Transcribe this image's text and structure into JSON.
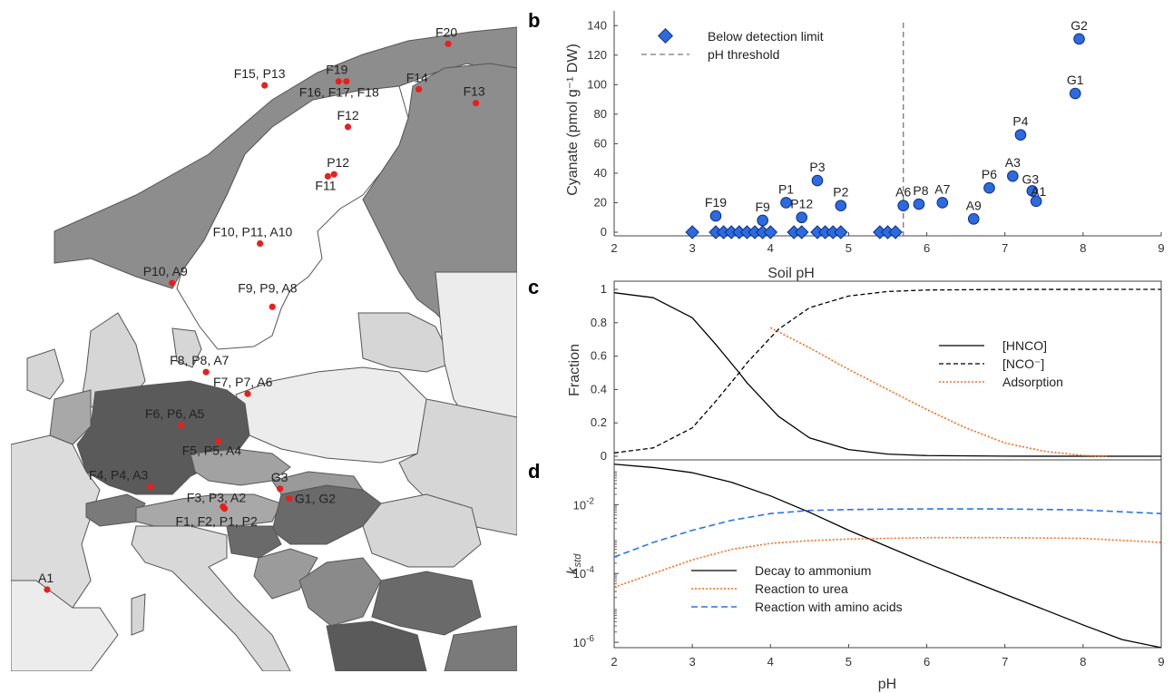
{
  "panel_labels": {
    "a": "a",
    "b": "b",
    "c": "c",
    "d": "d"
  },
  "colors": {
    "site_dot": "#e8201c",
    "point_fill": "#2d6ae0",
    "point_stroke": "#0b2f80",
    "urea": "#ff6a1a",
    "amino": "#2a74e8",
    "threshold": "#777777",
    "sea": "#ffffff",
    "land_dark": "#6a6a6a",
    "land_mid": "#9b9b9b",
    "land_light": "#d6d6d6",
    "land_pale": "#ececec"
  },
  "map": {
    "sites": [
      {
        "label": "F20",
        "lon": 25.5,
        "lat": 70.1
      },
      {
        "label": "F15, P13",
        "lon": 13.6,
        "lat": 68.0
      },
      {
        "label": "F19",
        "lon": 18.4,
        "lat": 68.2
      },
      {
        "label": "F16, F17, F18",
        "lon": 18.9,
        "lat": 68.2
      },
      {
        "label": "F14",
        "lon": 23.6,
        "lat": 67.8
      },
      {
        "label": "F13",
        "lon": 27.3,
        "lat": 67.1
      },
      {
        "label": "F12",
        "lon": 19.0,
        "lat": 65.9
      },
      {
        "label": "P12",
        "lon": 18.1,
        "lat": 63.5
      },
      {
        "label": "F11",
        "lon": 17.7,
        "lat": 63.4
      },
      {
        "label": "F10, P11, A10",
        "lon": 13.3,
        "lat": 60.0
      },
      {
        "label": "P10, A9",
        "lon": 7.6,
        "lat": 58.0
      },
      {
        "label": "F9, P9, A8",
        "lon": 14.1,
        "lat": 56.8
      },
      {
        "label": "F8, P8, A7",
        "lon": 9.8,
        "lat": 53.5
      },
      {
        "label": "F7, P7, A6",
        "lon": 12.5,
        "lat": 52.4
      },
      {
        "label": "F6, P6, A5",
        "lon": 8.2,
        "lat": 50.8
      },
      {
        "label": "F5, P5, A4",
        "lon": 10.6,
        "lat": 50.0
      },
      {
        "label": "F4, P4, A3",
        "lon": 6.2,
        "lat": 47.7
      },
      {
        "label": "F3, P3, A2",
        "lon": 10.9,
        "lat": 46.7
      },
      {
        "label": "F1, F2, P1, P2",
        "lon": 11.0,
        "lat": 46.6
      },
      {
        "label": "G3",
        "lon": 14.6,
        "lat": 47.6
      },
      {
        "label": "G1, G2",
        "lon": 15.2,
        "lat": 47.1
      },
      {
        "label": "A1",
        "lon": -0.5,
        "lat": 42.5
      }
    ]
  },
  "chart_data": [
    {
      "panel": "b",
      "type": "scatter",
      "xlabel": "Soil pH",
      "ylabel": "Cyanate (pmol g⁻¹ DW)",
      "xlim": [
        2,
        9
      ],
      "ylim": [
        0,
        150
      ],
      "xticks": [
        2,
        3,
        4,
        5,
        6,
        7,
        8,
        9
      ],
      "yticks": [
        0,
        20,
        40,
        60,
        80,
        100,
        120,
        140
      ],
      "threshold_x": 5.7,
      "legend": [
        "Below detection limit",
        "pH threshold"
      ],
      "points": [
        {
          "label": "G2",
          "x": 7.95,
          "y": 131
        },
        {
          "label": "G1",
          "x": 7.9,
          "y": 94
        },
        {
          "label": "P4",
          "x": 7.2,
          "y": 66
        },
        {
          "label": "A3",
          "x": 7.1,
          "y": 38
        },
        {
          "label": "P6",
          "x": 6.8,
          "y": 30
        },
        {
          "label": "G3",
          "x": 7.35,
          "y": 28
        },
        {
          "label": "A1",
          "x": 7.4,
          "y": 21
        },
        {
          "label": "A9",
          "x": 6.6,
          "y": 9
        },
        {
          "label": "A7",
          "x": 6.2,
          "y": 20
        },
        {
          "label": "P8",
          "x": 5.9,
          "y": 19
        },
        {
          "label": "A6",
          "x": 5.7,
          "y": 18
        },
        {
          "label": "P2",
          "x": 4.9,
          "y": 18
        },
        {
          "label": "P3",
          "x": 4.6,
          "y": 35
        },
        {
          "label": "P1",
          "x": 4.2,
          "y": 20
        },
        {
          "label": "P12",
          "x": 4.4,
          "y": 10
        },
        {
          "label": "F9",
          "x": 3.9,
          "y": 8
        },
        {
          "label": "F19",
          "x": 3.3,
          "y": 11
        }
      ],
      "below_detection_x": [
        3.0,
        3.3,
        3.4,
        3.5,
        3.6,
        3.7,
        3.8,
        3.9,
        4.0,
        4.3,
        4.4,
        4.6,
        4.7,
        4.8,
        4.9,
        5.4,
        5.5,
        5.6
      ]
    },
    {
      "panel": "c",
      "type": "line",
      "xlabel": "",
      "ylabel": "Fraction",
      "xlim": [
        2,
        9
      ],
      "ylim": [
        0,
        1
      ],
      "yticks": [
        0,
        0.2,
        0.4,
        0.6,
        0.8,
        1
      ],
      "series": [
        {
          "name": "[HNCO]",
          "style": "solid",
          "x": [
            2,
            2.5,
            3,
            3.3,
            3.6,
            3.7,
            3.8,
            4.1,
            4.5,
            5,
            5.5,
            6,
            7,
            9
          ],
          "y": [
            0.98,
            0.95,
            0.83,
            0.67,
            0.5,
            0.44,
            0.39,
            0.24,
            0.11,
            0.04,
            0.013,
            0.004,
            0.0005,
            0
          ]
        },
        {
          "name": "[NCO⁻]",
          "style": "dashed",
          "x": [
            2,
            2.5,
            3,
            3.3,
            3.6,
            3.7,
            3.8,
            4.1,
            4.5,
            5,
            5.5,
            6,
            7,
            9
          ],
          "y": [
            0.02,
            0.05,
            0.17,
            0.33,
            0.5,
            0.56,
            0.61,
            0.76,
            0.89,
            0.96,
            0.987,
            0.996,
            0.9995,
            1
          ]
        },
        {
          "name": "Adsorption",
          "style": "dotted",
          "x": [
            4,
            4.5,
            5,
            5.5,
            6,
            6.5,
            7,
            7.5,
            8,
            8.3
          ],
          "y": [
            0.77,
            0.65,
            0.52,
            0.4,
            0.28,
            0.17,
            0.08,
            0.03,
            0.005,
            0
          ]
        }
      ]
    },
    {
      "panel": "d",
      "type": "line",
      "xlabel": "pH",
      "ylabel": "k_std",
      "ylabel_main": "k",
      "ylabel_sub": "std",
      "yscale": "log",
      "xlim": [
        2,
        9
      ],
      "ylim": [
        7e-07,
        0.2
      ],
      "xticks": [
        2,
        3,
        4,
        5,
        6,
        7,
        8,
        9
      ],
      "ytick_labels": [
        {
          "base": "10",
          "exp": "-2",
          "value": 0.01
        },
        {
          "base": "10",
          "exp": "-4",
          "value": 0.0001
        },
        {
          "base": "10",
          "exp": "-6",
          "value": 1e-06
        }
      ],
      "series": [
        {
          "name": "Decay to ammonium",
          "style": "solid",
          "x": [
            2,
            2.5,
            3,
            3.5,
            4,
            4.5,
            5,
            5.5,
            6,
            6.5,
            7,
            7.5,
            8,
            8.5,
            9
          ],
          "y": [
            0.15,
            0.12,
            0.085,
            0.045,
            0.018,
            0.006,
            0.0018,
            0.0006,
            0.0002,
            7e-05,
            2.5e-05,
            9e-06,
            3.2e-06,
            1.2e-06,
            7e-07
          ]
        },
        {
          "name": "Reaction to urea",
          "style": "dotted",
          "x": [
            2,
            2.5,
            3,
            3.5,
            4,
            4.5,
            5,
            5.5,
            6,
            7,
            8,
            9
          ],
          "y": [
            4e-05,
            0.0001,
            0.00025,
            0.0005,
            0.00075,
            0.0009,
            0.001,
            0.00105,
            0.0011,
            0.0011,
            0.00105,
            0.0008
          ]
        },
        {
          "name": "Reaction with amino acids",
          "style": "dashed",
          "x": [
            2,
            2.5,
            3,
            3.5,
            4,
            4.5,
            5,
            5.5,
            6,
            7,
            8,
            9
          ],
          "y": [
            0.0003,
            0.0008,
            0.0018,
            0.0035,
            0.0055,
            0.0068,
            0.0072,
            0.0074,
            0.0075,
            0.0075,
            0.007,
            0.0055
          ]
        }
      ]
    }
  ]
}
